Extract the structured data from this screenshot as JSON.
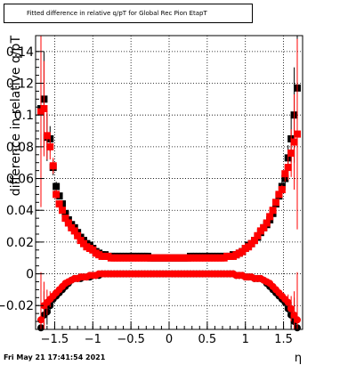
{
  "title_box": {
    "title": "Fitted difference in relative q/pT for Global Rec Pion EtapT"
  },
  "stamp": "Fri May 21 17:41:54 2021",
  "chart_data": {
    "type": "scatter",
    "title": "Fitted difference in relative q/pT for Global Rec Pion EtapT",
    "xlabel": "η",
    "ylabel": "difference in relative q/pT",
    "xlim": [
      -1.75,
      1.75
    ],
    "ylim": [
      -0.035,
      0.15
    ],
    "xticks": [
      -1.5,
      -1,
      -0.5,
      0,
      0.5,
      1,
      1.5
    ],
    "xtick_labels": [
      "−1.5",
      "−1",
      "−0.5",
      "0",
      "0.5",
      "1",
      "1.5"
    ],
    "yticks": [
      -0.02,
      0,
      0.02,
      0.04,
      0.06,
      0.08,
      0.1,
      0.12,
      0.14
    ],
    "ytick_labels": [
      "−0.02",
      "0",
      "0.02",
      "0.04",
      "0.06",
      "0.08",
      "0.1",
      "0.12",
      "0.14"
    ],
    "grid": true,
    "legend": "none",
    "x": [
      -1.68,
      -1.64,
      -1.6,
      -1.56,
      -1.52,
      -1.48,
      -1.44,
      -1.4,
      -1.36,
      -1.32,
      -1.28,
      -1.24,
      -1.2,
      -1.16,
      -1.12,
      -1.08,
      -1.04,
      -1.0,
      -0.96,
      -0.92,
      -0.88,
      -0.84,
      -0.8,
      -0.76,
      -0.72,
      -0.68,
      -0.64,
      -0.6,
      -0.56,
      -0.52,
      -0.48,
      -0.44,
      -0.4,
      -0.36,
      -0.32,
      -0.28,
      -0.24,
      -0.2,
      -0.16,
      -0.12,
      -0.08,
      -0.04,
      0.0,
      0.04,
      0.08,
      0.12,
      0.16,
      0.2,
      0.24,
      0.28,
      0.32,
      0.36,
      0.4,
      0.44,
      0.48,
      0.52,
      0.56,
      0.6,
      0.64,
      0.68,
      0.72,
      0.76,
      0.8,
      0.84,
      0.88,
      0.92,
      0.96,
      1.0,
      1.04,
      1.08,
      1.12,
      1.16,
      1.2,
      1.24,
      1.28,
      1.32,
      1.36,
      1.4,
      1.44,
      1.48,
      1.52,
      1.56,
      1.6,
      1.64,
      1.68
    ],
    "series": [
      {
        "marker": "square",
        "color": "#000000",
        "values": [
          0.104,
          0.11,
          0.086,
          0.085,
          0.067,
          0.055,
          0.049,
          0.044,
          0.038,
          0.034,
          0.031,
          0.029,
          0.026,
          0.023,
          0.021,
          0.019,
          0.018,
          0.016,
          0.014,
          0.013,
          0.012,
          0.012,
          0.011,
          0.011,
          0.011,
          0.011,
          0.011,
          0.011,
          0.011,
          0.011,
          0.011,
          0.011,
          0.011,
          0.011,
          0.011,
          0.011,
          0.01,
          0.01,
          0.01,
          0.01,
          0.01,
          0.01,
          0.01,
          0.01,
          0.01,
          0.01,
          0.01,
          0.01,
          0.01,
          0.011,
          0.011,
          0.011,
          0.011,
          0.011,
          0.011,
          0.011,
          0.011,
          0.011,
          0.011,
          0.011,
          0.011,
          0.011,
          0.011,
          0.012,
          0.012,
          0.013,
          0.014,
          0.016,
          0.018,
          0.019,
          0.021,
          0.023,
          0.026,
          0.029,
          0.031,
          0.034,
          0.038,
          0.044,
          0.049,
          0.055,
          0.06,
          0.073,
          0.085,
          0.1,
          0.117
        ],
        "errors": [
          0.06,
          0.03,
          0.015,
          0.008,
          0.005,
          0.003,
          0,
          0,
          0,
          0,
          0,
          0,
          0,
          0,
          0,
          0,
          0,
          0,
          0,
          0,
          0,
          0,
          0,
          0,
          0,
          0,
          0,
          0,
          0,
          0,
          0,
          0,
          0,
          0,
          0,
          0,
          0,
          0,
          0,
          0,
          0,
          0,
          0,
          0,
          0,
          0,
          0,
          0,
          0,
          0,
          0,
          0,
          0,
          0,
          0,
          0,
          0,
          0,
          0,
          0,
          0,
          0,
          0,
          0,
          0,
          0,
          0,
          0,
          0,
          0,
          0,
          0,
          0,
          0,
          0,
          0,
          0,
          0,
          0,
          0.003,
          0.005,
          0.008,
          0.015,
          0.03,
          0.06
        ]
      },
      {
        "marker": "square",
        "color": "#ff0000",
        "values": [
          0.102,
          0.104,
          0.087,
          0.08,
          0.068,
          0.05,
          0.044,
          0.04,
          0.035,
          0.032,
          0.029,
          0.027,
          0.024,
          0.021,
          0.019,
          0.017,
          0.016,
          0.015,
          0.013,
          0.012,
          0.011,
          0.011,
          0.011,
          0.01,
          0.01,
          0.01,
          0.01,
          0.01,
          0.01,
          0.01,
          0.01,
          0.01,
          0.01,
          0.01,
          0.01,
          0.01,
          0.01,
          0.01,
          0.01,
          0.01,
          0.01,
          0.01,
          0.01,
          0.01,
          0.01,
          0.01,
          0.01,
          0.01,
          0.01,
          0.01,
          0.01,
          0.01,
          0.01,
          0.01,
          0.01,
          0.01,
          0.01,
          0.01,
          0.01,
          0.01,
          0.01,
          0.011,
          0.011,
          0.011,
          0.012,
          0.013,
          0.014,
          0.016,
          0.017,
          0.019,
          0.021,
          0.024,
          0.027,
          0.029,
          0.032,
          0.036,
          0.04,
          0.045,
          0.05,
          0.053,
          0.063,
          0.067,
          0.076,
          0.083,
          0.088
        ],
        "errors": [
          0.06,
          0.03,
          0.015,
          0.008,
          0.005,
          0.003,
          0,
          0,
          0,
          0,
          0,
          0,
          0,
          0,
          0,
          0,
          0,
          0,
          0,
          0,
          0,
          0,
          0,
          0,
          0,
          0,
          0,
          0,
          0,
          0,
          0,
          0,
          0,
          0,
          0,
          0,
          0,
          0,
          0,
          0,
          0,
          0,
          0,
          0,
          0,
          0,
          0,
          0,
          0,
          0,
          0,
          0,
          0,
          0,
          0,
          0,
          0,
          0,
          0,
          0,
          0,
          0,
          0,
          0,
          0,
          0,
          0,
          0,
          0,
          0,
          0,
          0,
          0,
          0,
          0,
          0,
          0,
          0,
          0,
          0.003,
          0.005,
          0.008,
          0.015,
          0.03,
          0.06
        ]
      },
      {
        "marker": "circle",
        "color": "#000000",
        "values": [
          -0.034,
          -0.026,
          -0.024,
          -0.02,
          -0.016,
          -0.014,
          -0.012,
          -0.01,
          -0.008,
          -0.006,
          -0.004,
          -0.003,
          -0.003,
          -0.003,
          -0.002,
          -0.002,
          -0.002,
          -0.001,
          -0.001,
          -0.001,
          0.0,
          0.0,
          0.0,
          0.0,
          0.0,
          0.0,
          0.0,
          0.0,
          0.0,
          0.0,
          0.0,
          0.0,
          0.0,
          0.0,
          0.0,
          0.0,
          0.0,
          0.0,
          0.0,
          0.0,
          0.0,
          0.0,
          0.0,
          0.0,
          0.0,
          0.0,
          0.0,
          0.0,
          0.0,
          0.0,
          0.0,
          0.0,
          0.0,
          0.0,
          0.0,
          0.0,
          0.0,
          0.0,
          0.0,
          0.0,
          0.0,
          0.0,
          0.0,
          0.0,
          -0.001,
          -0.001,
          -0.001,
          -0.002,
          -0.002,
          -0.002,
          -0.003,
          -0.003,
          -0.003,
          -0.004,
          -0.006,
          -0.008,
          -0.01,
          -0.012,
          -0.014,
          -0.016,
          -0.018,
          -0.022,
          -0.026,
          -0.03,
          -0.034
        ],
        "errors": [
          0.03,
          0.015,
          0.008,
          0.005,
          0.003,
          0,
          0,
          0,
          0,
          0,
          0,
          0,
          0,
          0,
          0,
          0,
          0,
          0,
          0,
          0,
          0,
          0,
          0,
          0,
          0,
          0,
          0,
          0,
          0,
          0,
          0,
          0,
          0,
          0,
          0,
          0,
          0,
          0,
          0,
          0,
          0,
          0,
          0,
          0,
          0,
          0,
          0,
          0,
          0,
          0,
          0,
          0,
          0,
          0,
          0,
          0,
          0,
          0,
          0,
          0,
          0,
          0,
          0,
          0,
          0,
          0,
          0,
          0,
          0,
          0,
          0,
          0,
          0,
          0,
          0,
          0,
          0,
          0,
          0,
          0,
          0.003,
          0.005,
          0.008,
          0.015,
          0.03
        ]
      },
      {
        "marker": "circle",
        "color": "#ff0000",
        "values": [
          -0.029,
          -0.02,
          -0.018,
          -0.016,
          -0.014,
          -0.012,
          -0.01,
          -0.008,
          -0.006,
          -0.005,
          -0.004,
          -0.003,
          -0.003,
          -0.002,
          -0.002,
          -0.002,
          -0.001,
          -0.001,
          -0.001,
          0.0,
          0.0,
          0.0,
          0.0,
          0.0,
          0.0,
          0.0,
          0.0,
          0.0,
          0.0,
          0.0,
          0.0,
          0.0,
          0.0,
          0.0,
          0.0,
          0.0,
          0.0,
          0.0,
          0.0,
          0.0,
          0.0,
          0.0,
          0.0,
          0.0,
          0.0,
          0.0,
          0.0,
          0.0,
          0.0,
          0.0,
          0.0,
          0.0,
          0.0,
          0.0,
          0.0,
          0.0,
          0.0,
          0.0,
          0.0,
          0.0,
          0.0,
          0.0,
          0.0,
          0.0,
          -0.001,
          -0.001,
          -0.001,
          -0.002,
          -0.002,
          -0.002,
          -0.003,
          -0.003,
          -0.003,
          -0.004,
          -0.005,
          -0.006,
          -0.008,
          -0.01,
          -0.012,
          -0.014,
          -0.016,
          -0.018,
          -0.022,
          -0.026,
          -0.029
        ],
        "errors": [
          0.03,
          0.015,
          0.008,
          0.005,
          0.003,
          0,
          0,
          0,
          0,
          0,
          0,
          0,
          0,
          0,
          0,
          0,
          0,
          0,
          0,
          0,
          0,
          0,
          0,
          0,
          0,
          0,
          0,
          0,
          0,
          0,
          0,
          0,
          0,
          0,
          0,
          0,
          0,
          0,
          0,
          0,
          0,
          0,
          0,
          0,
          0,
          0,
          0,
          0,
          0,
          0,
          0,
          0,
          0,
          0,
          0,
          0,
          0,
          0,
          0,
          0,
          0,
          0,
          0,
          0,
          0,
          0,
          0,
          0,
          0,
          0,
          0,
          0,
          0,
          0,
          0,
          0,
          0,
          0,
          0,
          0,
          0.003,
          0.005,
          0.008,
          0.015,
          0.03
        ]
      }
    ]
  }
}
